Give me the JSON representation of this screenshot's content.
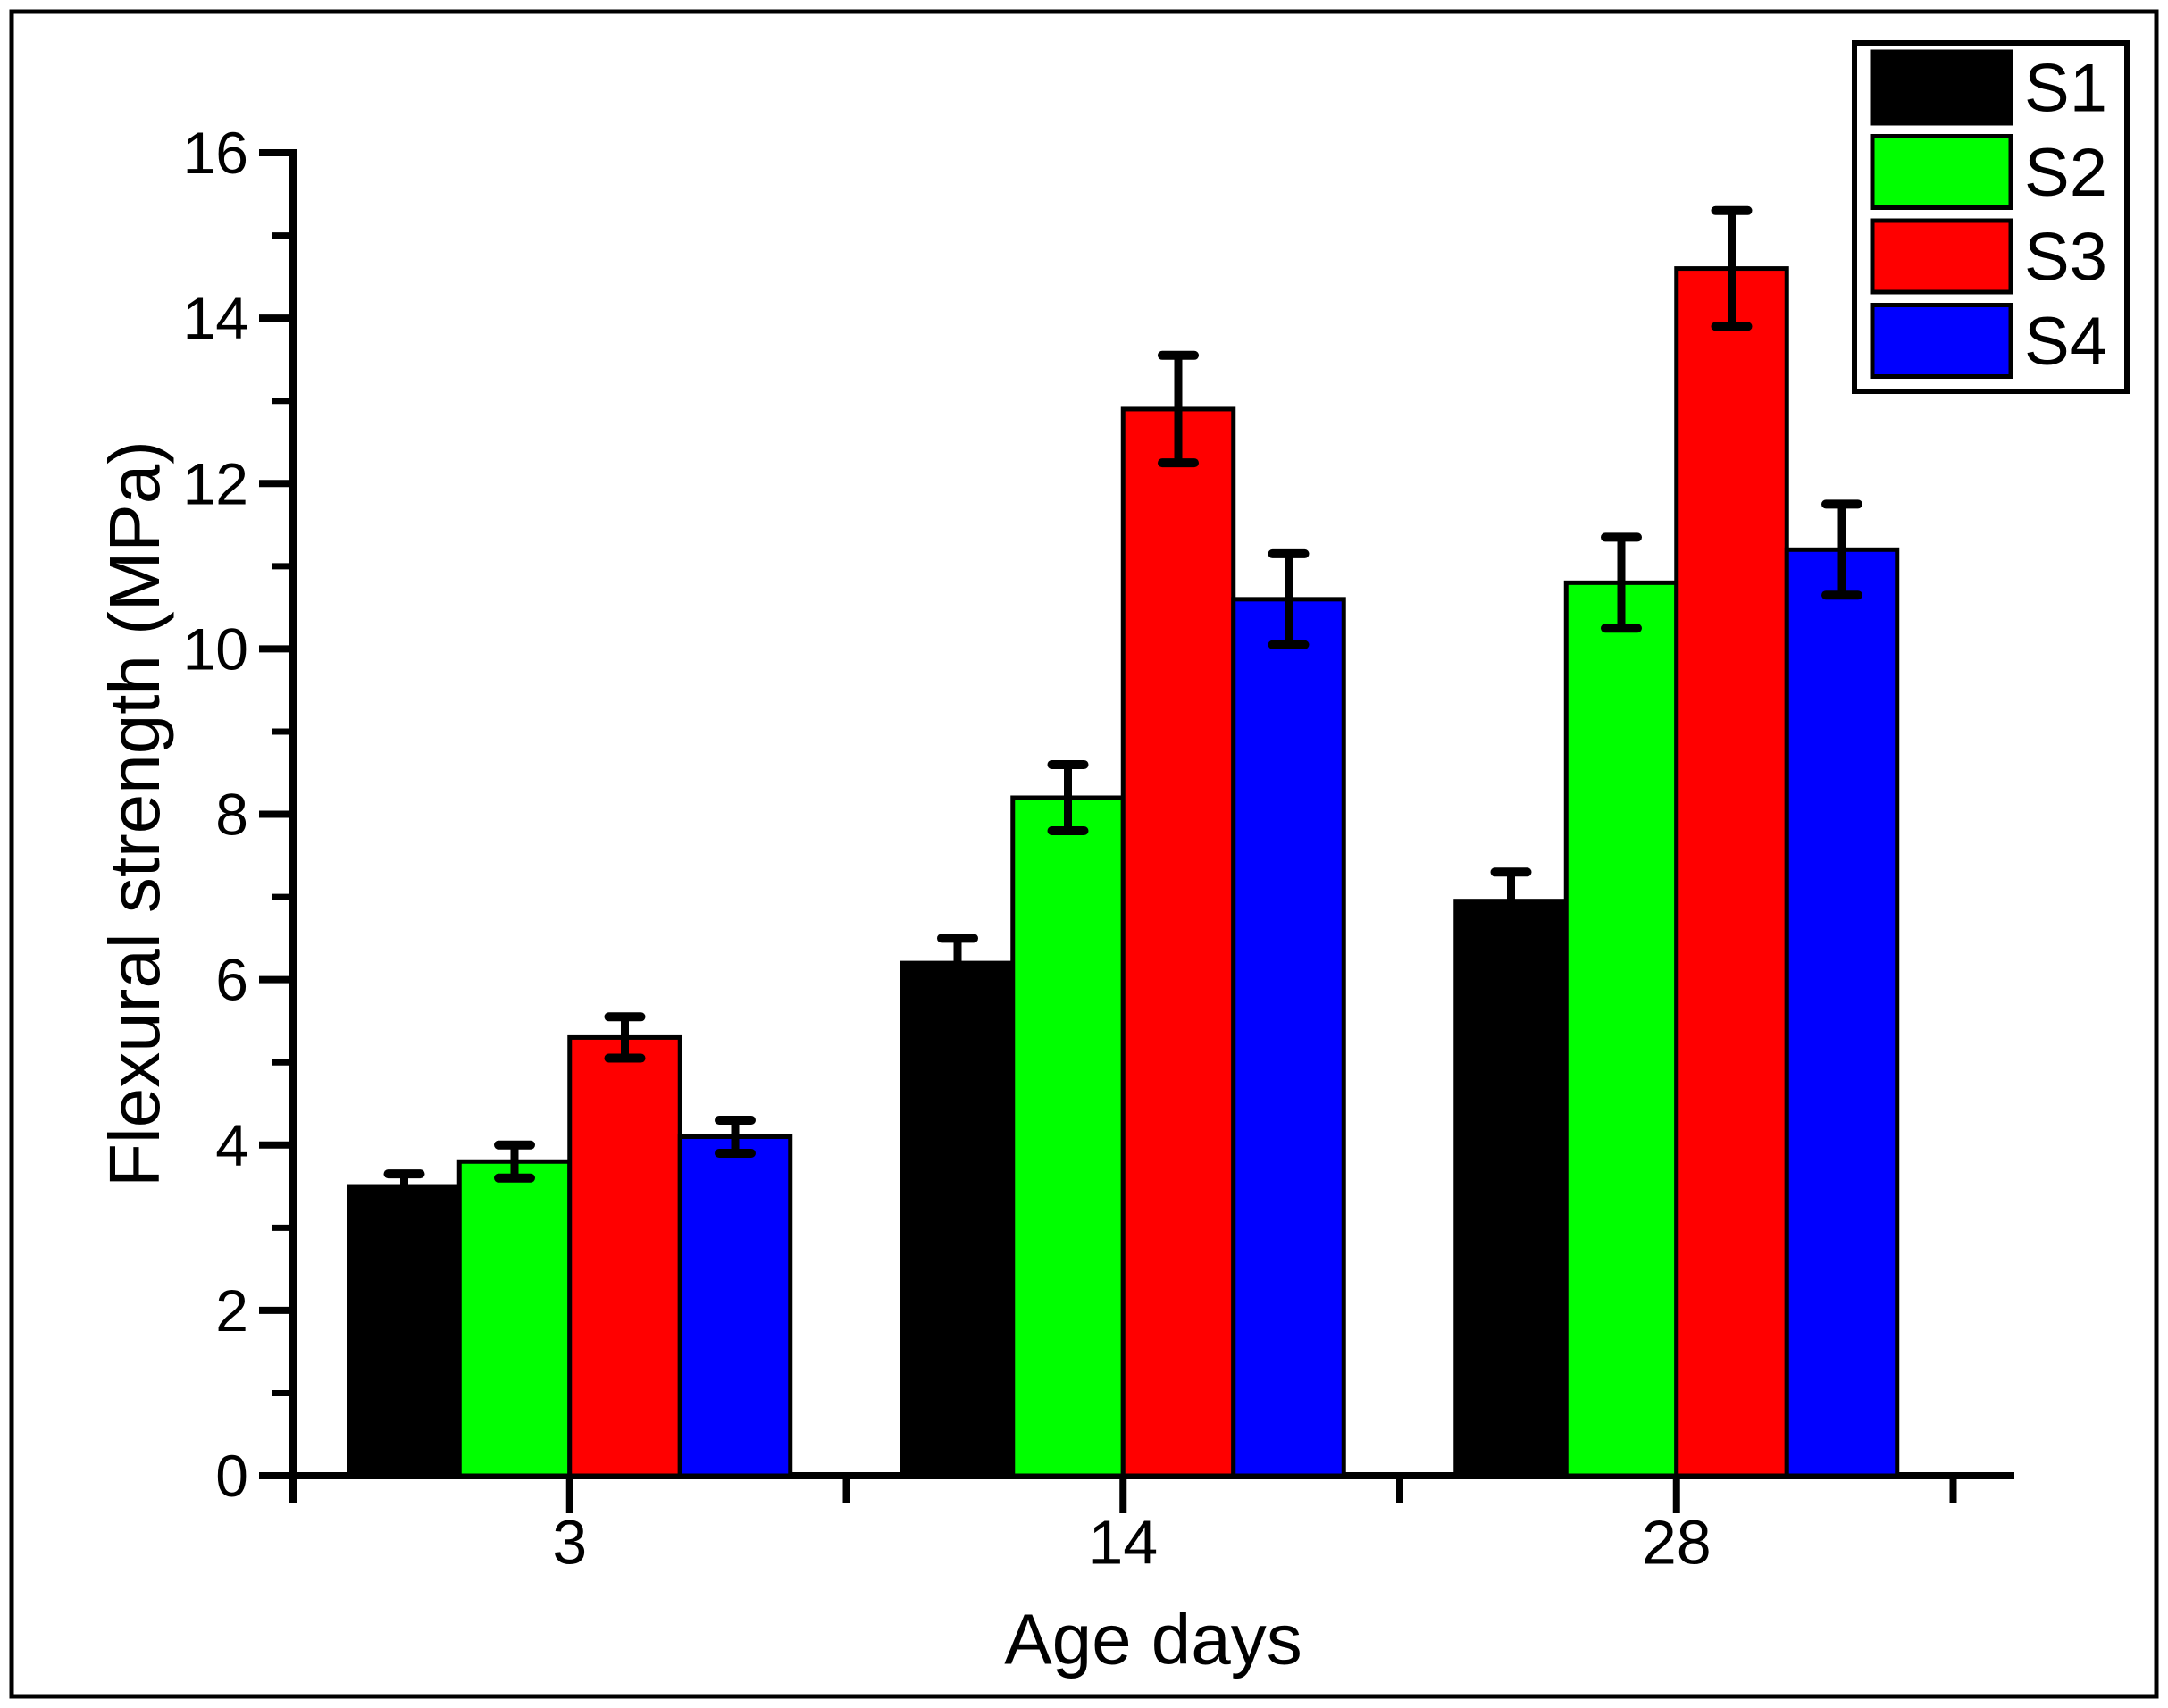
{
  "figure": {
    "background": "#FFFFFF",
    "border_color": "#000000"
  },
  "chart_data": {
    "type": "bar",
    "title": "",
    "xlabel": "Age days",
    "ylabel": "Flexural strength (MPa)",
    "categories": [
      "3",
      "14",
      "28"
    ],
    "series": [
      {
        "name": "S1",
        "color": "#000000",
        "values": [
          3.5,
          6.2,
          6.95
        ],
        "errors": [
          0.15,
          0.3,
          0.35
        ]
      },
      {
        "name": "S2",
        "color": "#00FF00",
        "values": [
          3.8,
          8.2,
          10.8
        ],
        "errors": [
          0.2,
          0.4,
          0.55
        ]
      },
      {
        "name": "S3",
        "color": "#FF0000",
        "values": [
          5.3,
          12.9,
          14.6
        ],
        "errors": [
          0.25,
          0.65,
          0.7
        ]
      },
      {
        "name": "S4",
        "color": "#0000FF",
        "values": [
          4.1,
          10.6,
          11.2
        ],
        "errors": [
          0.2,
          0.55,
          0.55
        ]
      }
    ],
    "ylim": [
      0,
      16
    ],
    "yticks": [
      0,
      2,
      4,
      6,
      8,
      10,
      12,
      14,
      16
    ],
    "y_minor_step": 1,
    "grid": false,
    "error_bars": true,
    "bar_edge_color": "#000000",
    "legend_position": "top-right"
  }
}
